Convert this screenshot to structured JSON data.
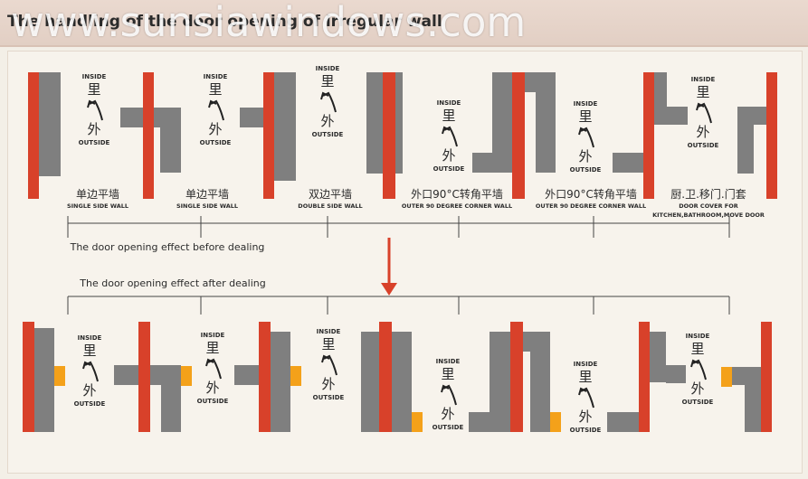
{
  "header": {
    "title": "The handling of the door opening of irregular wall",
    "watermark": "www.sunsiawindows.com"
  },
  "colors": {
    "wall": "#7f7f7f",
    "frame": "#d8412a",
    "cover": "#f4a11a",
    "arrow": "#c4462c",
    "line": "#444444",
    "text": "#2b2b2b"
  },
  "labels": {
    "inside_en": "INSIDE",
    "inside_cn": "里",
    "outside_en": "OUTSIDE",
    "outside_cn": "外"
  },
  "wall_types": [
    {
      "cn": "单边平墙",
      "en": "SINGLE SIDE WALL"
    },
    {
      "cn": "单边平墙",
      "en": "SINGLE SIDE WALL"
    },
    {
      "cn": "双边平墙",
      "en": "DOUBLE SIDE WALL"
    },
    {
      "cn": "外口90°C转角平墙",
      "en": "OUTER 90 DEGREE CORNER WALL"
    },
    {
      "cn": "外口90°C转角平墙",
      "en": "OUTER 90 DEGREE CORNER WALL"
    },
    {
      "cn": "厨.卫.移门.门套",
      "en": "DOOR COVER FOR",
      "en2": "KITCHEN,BATHROOM,MOVE DOOR"
    }
  ],
  "captions": {
    "before": "The door opening effect before dealing",
    "after": "The door opening effect after dealing"
  }
}
